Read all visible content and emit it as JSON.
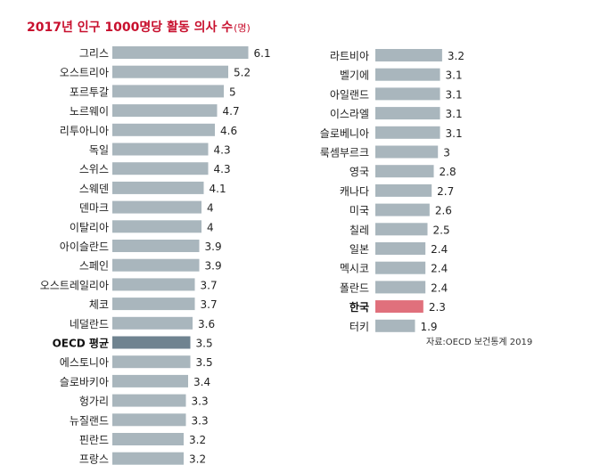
{
  "chart_data": {
    "type": "bar",
    "orientation": "horizontal",
    "title": "2017년 인구 1000명당 활동 의사 수",
    "unit": "(명)",
    "source": "자료:OECD 보건통계 2019",
    "colors": {
      "default": "#a9b6bd",
      "oecd_average": "#6f8390",
      "korea": "#e0707c",
      "title": "#c8102e"
    },
    "panels": [
      {
        "categories": [
          "그리스",
          "오스트리아",
          "포르투갈",
          "노르웨이",
          "리투아니아",
          "독일",
          "스위스",
          "스웨덴",
          "덴마크",
          "이탈리아",
          "아이슬란드",
          "스페인",
          "오스트레일리아",
          "체코",
          "네덜란드",
          "OECD 평균",
          "에스토니아",
          "슬로바키아",
          "헝가리",
          "뉴질랜드",
          "핀란드",
          "프랑스"
        ],
        "values": [
          6.1,
          5.2,
          5,
          4.7,
          4.6,
          4.3,
          4.3,
          4.1,
          4,
          4,
          3.9,
          3.9,
          3.7,
          3.7,
          3.6,
          3.5,
          3.5,
          3.4,
          3.3,
          3.3,
          3.2,
          3.2
        ],
        "labels": [
          "6.1",
          "5.2",
          "5",
          "4.7",
          "4.6",
          "4.3",
          "4.3",
          "4.1",
          "4",
          "4",
          "3.9",
          "3.9",
          "3.7",
          "3.7",
          "3.6",
          "3.5",
          "3.5",
          "3.4",
          "3.3",
          "3.3",
          "3.2",
          "3.2"
        ],
        "highlight": {
          "OECD 평균": "oecd_average"
        }
      },
      {
        "categories": [
          "라트비아",
          "벨기에",
          "아일랜드",
          "이스라엘",
          "슬로베니아",
          "룩셈부르크",
          "영국",
          "캐나다",
          "미국",
          "칠레",
          "일본",
          "멕시코",
          "폴란드",
          "한국",
          "터키"
        ],
        "values": [
          3.2,
          3.1,
          3.1,
          3.1,
          3.1,
          3,
          2.8,
          2.7,
          2.6,
          2.5,
          2.4,
          2.4,
          2.4,
          2.3,
          1.9
        ],
        "labels": [
          "3.2",
          "3.1",
          "3.1",
          "3.1",
          "3.1",
          "3",
          "2.8",
          "2.7",
          "2.6",
          "2.5",
          "2.4",
          "2.4",
          "2.4",
          "2.3",
          "1.9"
        ],
        "highlight": {
          "한국": "korea"
        }
      }
    ]
  }
}
